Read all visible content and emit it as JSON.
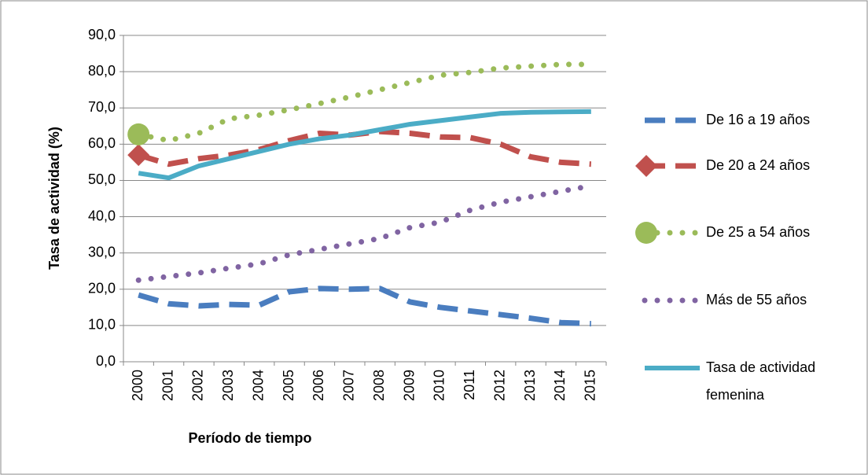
{
  "chart_data": {
    "type": "line",
    "y_label": "Tasa de actividad (%)",
    "x_label": "Período de tiempo",
    "categories": [
      "2000",
      "2001",
      "2002",
      "2003",
      "2004",
      "2005",
      "2006",
      "2007",
      "2008",
      "2009",
      "2010",
      "2011",
      "2012",
      "2013",
      "2014",
      "2015"
    ],
    "ylim": [
      0,
      90
    ],
    "yticks": [
      {
        "value": 0,
        "label": "0,0"
      },
      {
        "value": 10,
        "label": "10,0"
      },
      {
        "value": 20,
        "label": "20,0"
      },
      {
        "value": 30,
        "label": "30,0"
      },
      {
        "value": 40,
        "label": "40,0"
      },
      {
        "value": 50,
        "label": "50,0"
      },
      {
        "value": 60,
        "label": "60,0"
      },
      {
        "value": 70,
        "label": "70,0"
      },
      {
        "value": 80,
        "label": "80,0"
      },
      {
        "value": 90,
        "label": "90,0"
      }
    ],
    "grid": true,
    "legend": "right",
    "series": [
      {
        "name": "De 16 a 19 años",
        "color": "#4a7dbf",
        "dash": "long-dash",
        "values": [
          18.4,
          16.0,
          15.4,
          15.8,
          15.6,
          19.3,
          20.2,
          20.0,
          20.2,
          16.5,
          15.0,
          14.0,
          13.0,
          12.0,
          10.8,
          10.5
        ]
      },
      {
        "name": "De 20 a 24 años",
        "color": "#c0504d",
        "dash": "long-dash",
        "marker": "diamond",
        "values": [
          57.0,
          54.5,
          56.0,
          57.0,
          58.5,
          61.0,
          63.0,
          62.5,
          63.5,
          63.0,
          62.0,
          61.8,
          60.0,
          56.5,
          55.0,
          54.5
        ]
      },
      {
        "name": "De 25 a 54 años",
        "color": "#9bbb59",
        "dash": "dot",
        "marker": "circle",
        "values": [
          62.7,
          61.0,
          63.0,
          67.0,
          68.0,
          69.5,
          71.2,
          73.0,
          75.0,
          77.0,
          79.0,
          79.8,
          81.0,
          81.5,
          82.0,
          82.0
        ]
      },
      {
        "name": "Más de 55 años",
        "color": "#8064a2",
        "dash": "dot",
        "values": [
          22.5,
          23.5,
          24.5,
          25.8,
          27.0,
          29.5,
          31.0,
          32.5,
          34.0,
          37.0,
          38.5,
          41.8,
          44.0,
          45.5,
          47.0,
          48.5
        ]
      },
      {
        "name": "Tasa de actividad femenina",
        "color": "#4bacc6",
        "dash": "solid",
        "values": [
          52.0,
          50.7,
          54.0,
          56.0,
          58.0,
          60.0,
          61.5,
          62.5,
          64.0,
          65.5,
          66.5,
          67.5,
          68.5,
          68.8,
          68.9,
          69.0
        ]
      }
    ]
  }
}
